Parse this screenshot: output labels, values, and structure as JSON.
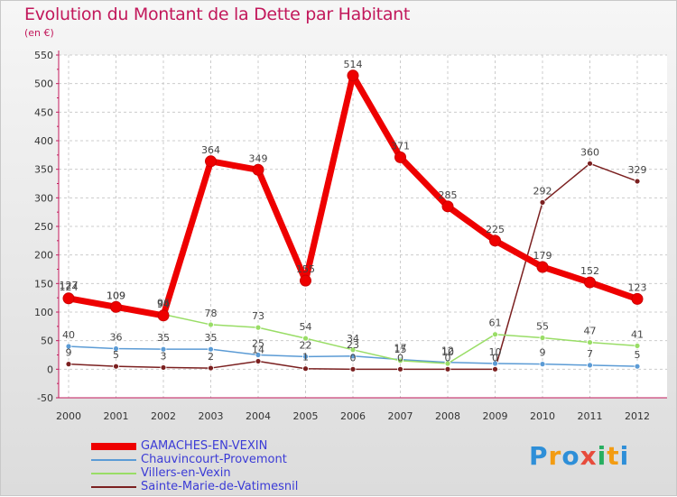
{
  "chart_data": {
    "type": "line",
    "title": "Evolution du Montant de la Dette par Habitant",
    "subtitle": "(en €)",
    "x": [
      "2000",
      "2001",
      "2002",
      "2003",
      "2004",
      "2005",
      "2006",
      "2007",
      "2008",
      "2009",
      "2010",
      "2011",
      "2012"
    ],
    "yticks": [
      "-50",
      "0",
      "50",
      "100",
      "150",
      "200",
      "250",
      "300",
      "350",
      "400",
      "450",
      "500",
      "550"
    ],
    "ylim": [
      -50,
      550
    ],
    "grid": true,
    "legend_position": "bottom-left",
    "series": [
      {
        "name": "GAMACHES-EN-VEXIN",
        "color": "#ee0000",
        "values": [
          124,
          109,
          94,
          364,
          349,
          155,
          514,
          371,
          285,
          225,
          179,
          152,
          123
        ]
      },
      {
        "name": "Chauvincourt-Provemont",
        "color": "#5b9bd5",
        "values": [
          40,
          36,
          35,
          35,
          25,
          22,
          23,
          17,
          12,
          10,
          9,
          7,
          5
        ]
      },
      {
        "name": "Villers-en-Vexin",
        "color": "#99dd66",
        "values": [
          127,
          109,
          96,
          78,
          73,
          54,
          34,
          15,
          10,
          61,
          55,
          47,
          41
        ]
      },
      {
        "name": "Sainte-Marie-de-Vatimesnil",
        "color": "#7b2020",
        "values": [
          9,
          5,
          3,
          2,
          14,
          1,
          0,
          0,
          0,
          0,
          292,
          360,
          329
        ]
      }
    ]
  },
  "logo": {
    "text": "Proxiti"
  }
}
